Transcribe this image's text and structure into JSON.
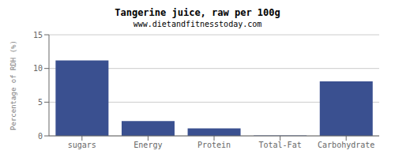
{
  "chart_data": {
    "type": "bar",
    "title": "Tangerine juice, raw per 100g",
    "subtitle": "www.dietandfitnesstoday.com",
    "categories": [
      "sugars",
      "Energy",
      "Protein",
      "Total-Fat",
      "Carbohydrate"
    ],
    "values": [
      11.2,
      2.2,
      1.1,
      0.05,
      8.1
    ],
    "color": "#3a5090",
    "ylim": [
      0,
      15
    ],
    "yticks": [
      0,
      5,
      10,
      15
    ],
    "ylabel": "Percentage of RDH (%)",
    "grid": true
  }
}
